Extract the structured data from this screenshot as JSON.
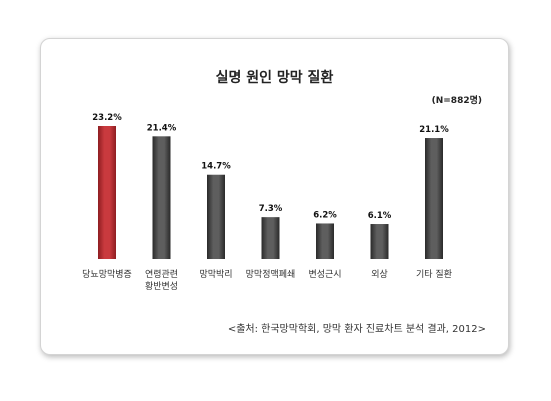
{
  "chart_data": {
    "type": "bar",
    "title": "실명 원인 망막 질환",
    "note": "(N=882명)",
    "source": "<출처: 한국망막학회, 망막 환자 진료차트 분석 결과, 2012>",
    "categories": [
      [
        "당뇨망막병증"
      ],
      [
        "연령관련",
        "황반변성"
      ],
      [
        "망막박리"
      ],
      [
        "망막정맥폐쇄"
      ],
      [
        "변성근시"
      ],
      [
        "외상"
      ],
      [
        "기타 질환"
      ]
    ],
    "values": [
      23.2,
      21.4,
      14.7,
      7.3,
      6.2,
      6.1,
      21.1
    ],
    "value_labels": [
      "23.2%",
      "21.4%",
      "14.7%",
      "7.3%",
      "6.2%",
      "6.1%",
      "21.1%"
    ],
    "ylim": [
      0,
      23.2
    ],
    "grid": false,
    "legend": "none",
    "colors": {
      "highlight": "#b5292d",
      "default": "#3a3a3a"
    },
    "highlight_index": 0
  }
}
